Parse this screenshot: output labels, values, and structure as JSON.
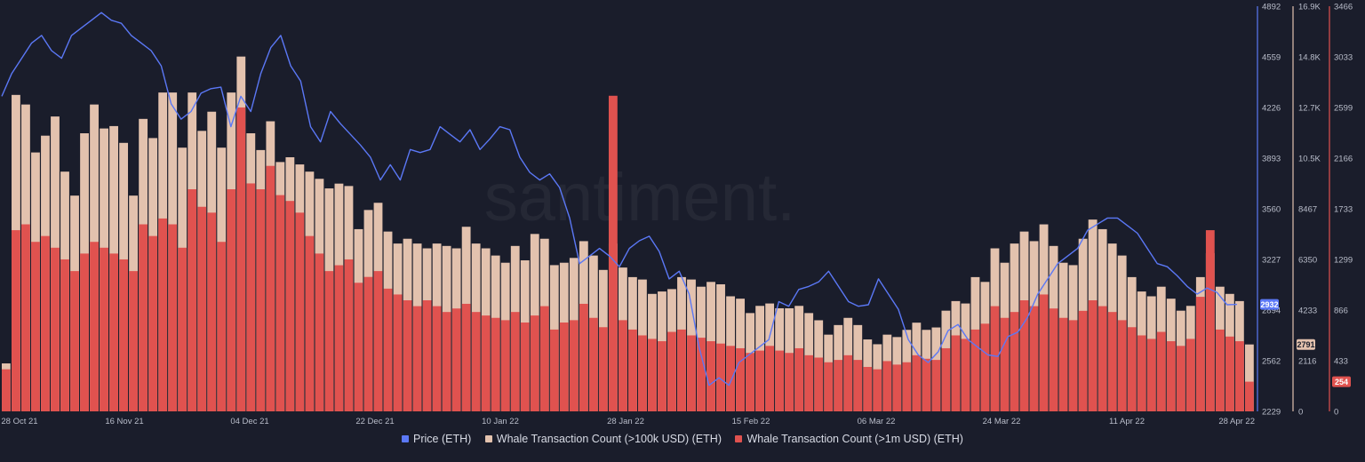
{
  "chart_data": {
    "type": "bar",
    "watermark": "santiment.",
    "x_tick_labels": [
      "28 Oct 21",
      "16 Nov 21",
      "04 Dec 21",
      "22 Dec 21",
      "10 Jan 22",
      "28 Jan 22",
      "15 Feb 22",
      "06 Mar 22",
      "24 Mar 22",
      "11 Apr 22",
      "28 Apr 22"
    ],
    "axes": {
      "price": {
        "ticks": [
          "4892",
          "4559",
          "4226",
          "3893",
          "3560",
          "3227",
          "2894",
          "2562",
          "2229"
        ],
        "min": 2229,
        "max": 4892,
        "color": "#5b78f6"
      },
      "whale_100k": {
        "ticks": [
          "16.9K",
          "14.8K",
          "12.7K",
          "10.5K",
          "8467",
          "6350",
          "4233",
          "2116",
          "0"
        ],
        "min": 0,
        "max": 16900,
        "color": "#e3c2ae"
      },
      "whale_1m": {
        "ticks": [
          "3466",
          "3033",
          "2599",
          "2166",
          "1733",
          "1299",
          "866",
          "433",
          "0"
        ],
        "min": 0,
        "max": 3466,
        "color": "#e0524f"
      }
    },
    "current_values": {
      "price": "2932",
      "whale_100k": "2791",
      "whale_1m": "254"
    },
    "series": [
      {
        "name": "Price (ETH)",
        "kind": "line",
        "color": "#5b78f6",
        "values": [
          4300,
          4450,
          4550,
          4650,
          4700,
          4600,
          4550,
          4700,
          4750,
          4800,
          4850,
          4800,
          4780,
          4700,
          4650,
          4600,
          4500,
          4250,
          4150,
          4200,
          4320,
          4350,
          4360,
          4100,
          4300,
          4200,
          4450,
          4620,
          4700,
          4500,
          4400,
          4100,
          4000,
          4200,
          4120,
          4050,
          3980,
          3900,
          3750,
          3850,
          3750,
          3950,
          3930,
          3950,
          4100,
          4050,
          4000,
          4080,
          3950,
          4020,
          4100,
          4080,
          3900,
          3800,
          3750,
          3790,
          3700,
          3500,
          3200,
          3250,
          3300,
          3250,
          3180,
          3300,
          3350,
          3380,
          3280,
          3100,
          3150,
          3000,
          2650,
          2400,
          2450,
          2400,
          2550,
          2600,
          2650,
          2700,
          2950,
          2920,
          3030,
          3050,
          3080,
          3150,
          3050,
          2950,
          2920,
          2930,
          3100,
          3000,
          2900,
          2700,
          2600,
          2550,
          2620,
          2760,
          2800,
          2700,
          2650,
          2600,
          2590,
          2720,
          2750,
          2850,
          3000,
          3100,
          3200,
          3250,
          3300,
          3420,
          3460,
          3500,
          3500,
          3450,
          3400,
          3300,
          3200,
          3180,
          3120,
          3050,
          3000,
          3040,
          3010,
          2930,
          2932
        ]
      },
      {
        "name": "Whale Transaction Count (>100k USD) (ETH)",
        "kind": "bar",
        "color": "#e3c2ae",
        "values": [
          2000,
          13200,
          12800,
          10800,
          11500,
          12300,
          10000,
          9000,
          11600,
          12800,
          11800,
          11900,
          11200,
          9000,
          12200,
          11400,
          13300,
          13300,
          11000,
          13300,
          11700,
          12500,
          11000,
          13300,
          14800,
          11600,
          10900,
          12100,
          10400,
          10600,
          10300,
          10000,
          9700,
          9300,
          9500,
          9400,
          7600,
          8400,
          8700,
          7500,
          7000,
          7200,
          7000,
          6800,
          7000,
          6900,
          6800,
          7700,
          7000,
          6800,
          6500,
          6200,
          6900,
          6300,
          7400,
          7200,
          6100,
          6200,
          6400,
          7100,
          6500,
          5900,
          7000,
          6000,
          5600,
          5500,
          4900,
          5000,
          5100,
          5600,
          5500,
          5200,
          5400,
          5300,
          4800,
          4700,
          4100,
          4400,
          4500,
          4300,
          4300,
          4400,
          4100,
          3800,
          3200,
          3600,
          3900,
          3600,
          3000,
          2800,
          3200,
          3100,
          3400,
          3700,
          3400,
          3500,
          4200,
          4600,
          4500,
          5600,
          5400,
          6800,
          6200,
          7000,
          7500,
          7100,
          7800,
          6900,
          6200,
          6100,
          7200,
          8000,
          7600,
          7000,
          6500,
          5600,
          5000,
          4800,
          5200,
          4700,
          4200,
          4400,
          5600,
          6600,
          5200,
          4900,
          4600,
          2791
        ]
      },
      {
        "name": "Whale Transaction Count (>1m USD) (ETH)",
        "kind": "bar",
        "color": "#e0524f",
        "values": [
          360,
          1550,
          1600,
          1450,
          1500,
          1400,
          1300,
          1200,
          1350,
          1450,
          1400,
          1350,
          1300,
          1200,
          1600,
          1500,
          1650,
          1600,
          1400,
          1900,
          1750,
          1700,
          1450,
          1900,
          2600,
          1950,
          1900,
          2100,
          1850,
          1800,
          1700,
          1500,
          1350,
          1200,
          1250,
          1300,
          1100,
          1150,
          1200,
          1050,
          1000,
          950,
          900,
          950,
          900,
          850,
          880,
          920,
          850,
          820,
          800,
          780,
          850,
          760,
          820,
          900,
          700,
          760,
          780,
          920,
          800,
          720,
          2700,
          780,
          700,
          650,
          620,
          600,
          680,
          700,
          650,
          630,
          600,
          580,
          560,
          540,
          500,
          520,
          560,
          520,
          500,
          540,
          480,
          460,
          420,
          440,
          480,
          440,
          380,
          360,
          430,
          400,
          420,
          480,
          450,
          440,
          540,
          650,
          620,
          700,
          750,
          900,
          800,
          850,
          950,
          900,
          1000,
          880,
          800,
          780,
          860,
          950,
          900,
          850,
          780,
          720,
          650,
          620,
          680,
          600,
          560,
          620,
          980,
          1550,
          700,
          640,
          600,
          254
        ]
      }
    ]
  },
  "legend": [
    {
      "label": "Price (ETH)",
      "color": "#5b78f6"
    },
    {
      "label": "Whale Transaction Count (>100k USD) (ETH)",
      "color": "#e3c2ae"
    },
    {
      "label": "Whale Transaction Count (>1m USD) (ETH)",
      "color": "#e0524f"
    }
  ]
}
